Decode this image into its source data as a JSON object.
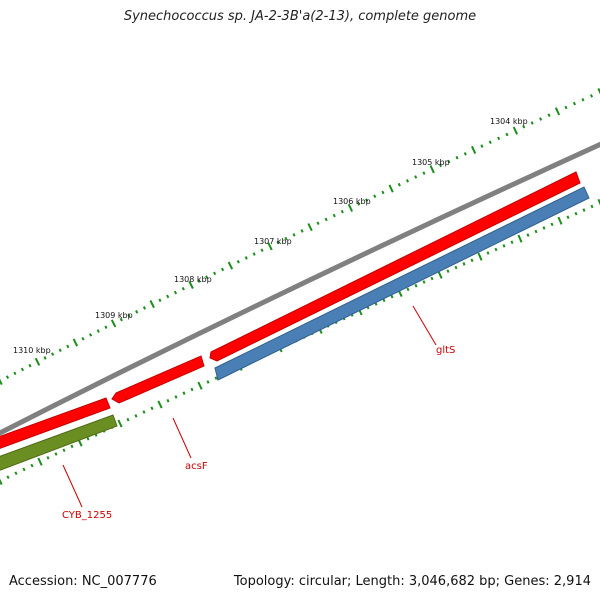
{
  "title": "Synechococcus sp. JA-2-3B'a(2-13), complete genome",
  "footer": {
    "accession": "Accession: NC_007776",
    "topology": "Topology: circular; Length: 3,046,682 bp; Genes: 2,914"
  },
  "colors": {
    "backbone": "#808080",
    "cds_forward": "#ff0000",
    "cds_reverse": "#ff0000",
    "rna_gene": "#4a7fb5",
    "other_gene": "#6b8e23",
    "ticks": "#1a8f1a",
    "labels": "#cc0000"
  },
  "scale": {
    "ticks": [
      {
        "label": "1304 kbp"
      },
      {
        "label": "1305 kbp"
      },
      {
        "label": "1306 kbp"
      },
      {
        "label": "1307 kbp"
      },
      {
        "label": "1308 kbp"
      },
      {
        "label": "1309 kbp"
      },
      {
        "label": "1310 kbp"
      }
    ]
  },
  "genes": [
    {
      "name": "gltS",
      "strand": "reverse",
      "type": "CDS"
    },
    {
      "name": "acsF",
      "strand": "reverse",
      "type": "CDS"
    },
    {
      "name": "CYB_1255",
      "strand": "reverse",
      "type": "CDS"
    }
  ]
}
